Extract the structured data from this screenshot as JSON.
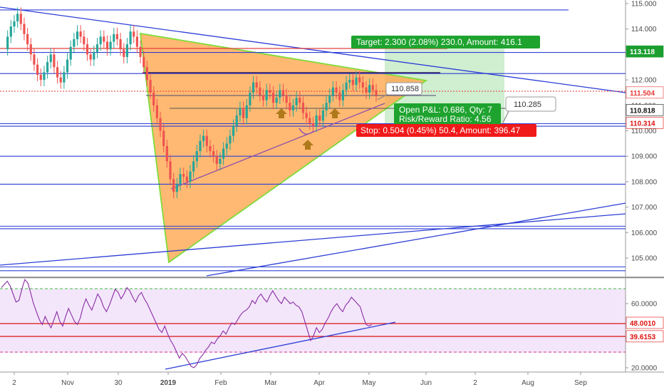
{
  "chart_data": [
    {
      "type": "candlestick",
      "yaxis": {
        "ticks": [
          "115.000",
          "114.000",
          "113.000",
          "112.000",
          "111.000",
          "110.000",
          "109.000",
          "108.000",
          "107.000",
          "106.000",
          "105.000"
        ],
        "range": [
          104.3,
          115.1
        ]
      },
      "xaxis": {
        "ticks": [
          "2",
          "Nov",
          "30",
          "2019",
          "Feb",
          "Mar",
          "Apr",
          "May",
          "Jun",
          "2",
          "Aug",
          "Sep"
        ]
      },
      "price_badges": [
        {
          "label": "113.118",
          "value": 113.118,
          "color": "#1b9e2f"
        },
        {
          "label": "111.504",
          "value": 111.504,
          "color": "#ffffff",
          "text_color": "#e53935"
        },
        {
          "label": "110.818",
          "value": 110.818,
          "color": "#ffffff",
          "text_color": "#111111"
        },
        {
          "label": "110.314",
          "value": 110.314,
          "color": "#ffffff",
          "text_color": "#e01010"
        }
      ],
      "annotations": {
        "target": "Target: 2.300 (2.08%) 230.0, Amount: 416.1",
        "open_pl": "Open P&L: 0.686, Qty: 7",
        "risk_reward": "Risk/Reward Ratio: 4.56",
        "stop": "Stop: 0.504 (0.45%) 50.4, Amount: 396.47",
        "callout_1": "110.858",
        "callout_2": "110.285"
      },
      "horizontal_levels": [
        114.75,
        113.08,
        112.25,
        110.28,
        110.18,
        109.0,
        107.9,
        106.25,
        106.15,
        104.65,
        104.5
      ],
      "series": [
        {
          "values": [
            113.2,
            113.7,
            114.1,
            114.3,
            114.6,
            114.2,
            113.8,
            113.4,
            113.0,
            112.6,
            112.2,
            112.0,
            112.3,
            112.7,
            113.0,
            112.5,
            112.1,
            111.9,
            112.3,
            112.8,
            113.3,
            113.6,
            113.9,
            113.7,
            113.4,
            113.0,
            112.8,
            113.1,
            113.4,
            113.7,
            113.5,
            113.2,
            113.5,
            113.8,
            113.6,
            113.2,
            112.9,
            113.4,
            113.9,
            113.7,
            113.3,
            112.9,
            112.5,
            112.0,
            111.5,
            111.0,
            110.5,
            110.0,
            109.4,
            108.8,
            108.1,
            107.6,
            107.9,
            108.3,
            108.2,
            108.0,
            108.4,
            108.8,
            109.2,
            109.6,
            109.8,
            109.4,
            109.2,
            109.0,
            108.7,
            108.9,
            109.3,
            109.5,
            109.8,
            110.2,
            110.6,
            110.9,
            110.5,
            111.0,
            111.5,
            111.9,
            111.7,
            111.4,
            111.2,
            111.6,
            111.5,
            111.1,
            111.3,
            111.6,
            111.4,
            111.1,
            110.8,
            111.0,
            111.3,
            111.1,
            110.7,
            110.5,
            110.3,
            110.2,
            110.6,
            110.4,
            110.8,
            111.1,
            111.4,
            111.7,
            111.5,
            111.2,
            111.6,
            111.9,
            112.0,
            111.8,
            112.1,
            111.9,
            111.7,
            111.5,
            111.8,
            111.6,
            111.4
          ]
        }
      ]
    },
    {
      "type": "line",
      "yaxis": {
        "ticks": [
          "60.0000",
          "20.0000"
        ],
        "range": [
          18,
          80
        ]
      },
      "price_badges": [
        {
          "label": "48.0010",
          "value": 48.001,
          "color": "#ffffff",
          "text_color": "#e01010"
        },
        {
          "label": "39.6153",
          "value": 39.6153,
          "color": "#ffffff",
          "text_color": "#e01010"
        }
      ],
      "levels": [
        70,
        48.001,
        39.6153,
        30
      ],
      "series": [
        {
          "values": [
            70,
            72,
            74,
            71,
            66,
            61,
            62,
            69,
            75,
            73,
            67,
            60,
            55,
            50,
            47,
            52,
            48,
            45,
            50,
            55,
            49,
            46,
            52,
            57,
            53,
            49,
            47,
            51,
            58,
            63,
            59,
            56,
            61,
            66,
            63,
            58,
            55,
            59,
            64,
            69,
            67,
            63,
            66,
            70,
            68,
            64,
            61,
            65,
            67,
            63,
            60,
            56,
            52,
            48,
            44,
            42,
            46,
            41,
            37,
            34,
            30,
            26,
            29,
            27,
            24,
            21,
            20,
            22,
            26,
            28,
            31,
            33,
            36,
            35,
            38,
            40,
            43,
            41,
            45,
            48,
            47,
            50,
            53,
            55,
            56,
            58,
            62,
            60,
            64,
            66,
            63,
            61,
            65,
            68,
            65,
            62,
            60,
            64,
            62,
            60,
            61,
            59,
            58,
            55,
            49,
            43,
            37,
            40,
            45,
            42,
            44,
            48,
            51,
            55,
            58,
            60,
            57,
            55,
            59,
            61,
            64,
            62,
            60,
            58,
            52,
            47,
            46,
            47
          ]
        }
      ]
    }
  ]
}
